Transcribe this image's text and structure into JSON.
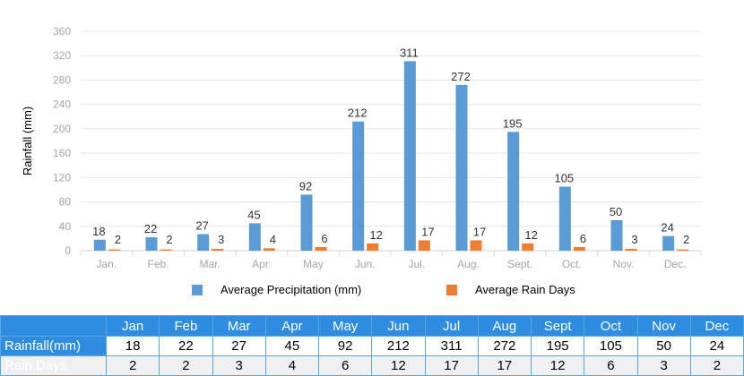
{
  "chart_data": {
    "type": "bar",
    "categories": [
      "Jan.",
      "Feb.",
      "Mar.",
      "Apr.",
      "May",
      "Jun.",
      "Jul.",
      "Aug.",
      "Sept.",
      "Oct.",
      "Nov.",
      "Dec."
    ],
    "series": [
      {
        "name": "Average Precipitation (mm)",
        "color": "#5b9bd5",
        "values": [
          18,
          22,
          27,
          45,
          92,
          212,
          311,
          272,
          195,
          105,
          50,
          24
        ]
      },
      {
        "name": "Average Rain Days",
        "color": "#ed7d31",
        "values": [
          2,
          2,
          3,
          4,
          6,
          12,
          17,
          17,
          12,
          6,
          3,
          2
        ]
      }
    ],
    "ylabel": "Rainfall (mm)",
    "ylim": [
      0,
      360
    ],
    "yticks": [
      0,
      40,
      80,
      120,
      160,
      200,
      240,
      280,
      320,
      360
    ],
    "grid": true,
    "legend": "bottom"
  },
  "table": {
    "months": [
      "Jan",
      "Feb",
      "Mar",
      "Apr",
      "May",
      "Jun",
      "Jul",
      "Aug",
      "Sept",
      "Oct",
      "Nov",
      "Dec"
    ],
    "rows": [
      {
        "label": "Rainfall(mm)",
        "values": [
          "18",
          "22",
          "27",
          "45",
          "92",
          "212",
          "311",
          "272",
          "195",
          "105",
          "50",
          "24"
        ]
      },
      {
        "label": "Rain Days",
        "values": [
          "2",
          "2",
          "3",
          "4",
          "6",
          "12",
          "17",
          "17",
          "12",
          "6",
          "3",
          "2"
        ]
      }
    ]
  }
}
